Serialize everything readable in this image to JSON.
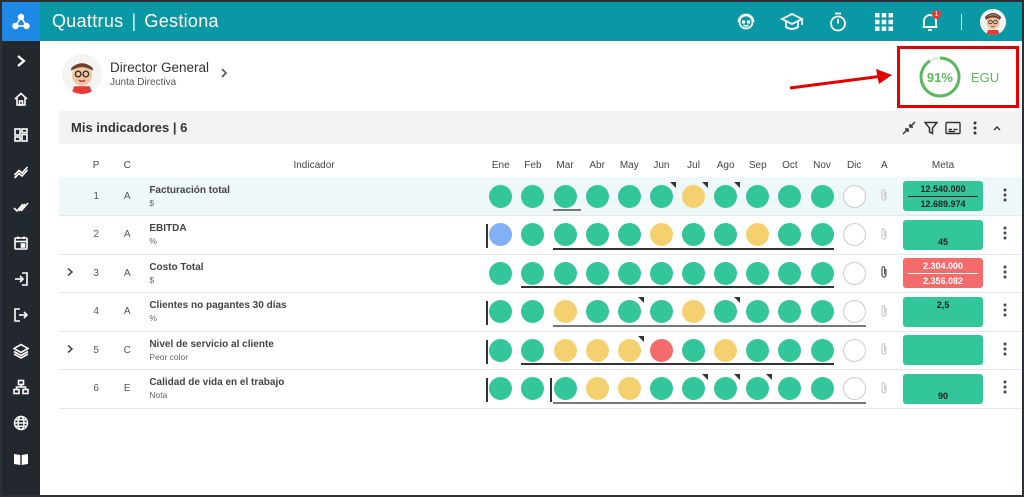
{
  "app": {
    "brand_left": "Quattrus",
    "brand_sep": "|",
    "brand_right": "Gestiona",
    "notif_count": "1"
  },
  "user": {
    "title": "Director General",
    "subtitle": "Junta Directiva"
  },
  "egu": {
    "percent": "91%",
    "label": "EGU",
    "value": 0.91,
    "color": "#5cb85c"
  },
  "panel": {
    "title": "Mis indicadores | 6"
  },
  "columns": {
    "p": "P",
    "c": "C",
    "indicador": "Indicador",
    "months": [
      "Ene",
      "Feb",
      "Mar",
      "Abr",
      "May",
      "Jun",
      "Jul",
      "Ago",
      "Sep",
      "Oct",
      "Nov",
      "Dic"
    ],
    "a": "A",
    "meta": "Meta"
  },
  "rows": [
    {
      "p": "1",
      "c": "A",
      "name": "Facturación total",
      "unit": "$",
      "meta_top": "12.540.000",
      "meta_bottom": "12.689.974",
      "meta_color": "green",
      "dots": [
        "g",
        "g",
        "g",
        "g",
        "g",
        "g",
        "y",
        "g",
        "g",
        "g",
        "g",
        "e"
      ],
      "corners": [
        5,
        6,
        7
      ]
    },
    {
      "p": "2",
      "c": "A",
      "name": "EBITDA",
      "unit": "%",
      "meta_top": "",
      "meta_bottom": "45",
      "meta_color": "green",
      "dots": [
        "b",
        "g",
        "g",
        "g",
        "g",
        "y",
        "g",
        "g",
        "y",
        "g",
        "g",
        "e"
      ],
      "corners": []
    },
    {
      "p": "3",
      "c": "A",
      "name": "Costo Total",
      "unit": "$",
      "meta_top": "2.304.000",
      "meta_bottom": "2.356.082",
      "meta_color": "red",
      "dots": [
        "g",
        "g",
        "g",
        "g",
        "g",
        "g",
        "g",
        "g",
        "g",
        "g",
        "g",
        "e"
      ],
      "corners": []
    },
    {
      "p": "4",
      "c": "A",
      "name": "Clientes no pagantes 30 días",
      "unit": "%",
      "meta_top": "2,5",
      "meta_bottom": "",
      "meta_color": "green",
      "dots": [
        "g",
        "g",
        "y",
        "g",
        "g",
        "g",
        "y",
        "g",
        "g",
        "g",
        "g",
        "e"
      ],
      "corners": [
        4,
        7
      ]
    },
    {
      "p": "5",
      "c": "C",
      "name": "Nivel de servicio al cliente",
      "unit": "Peor color",
      "meta_top": "",
      "meta_bottom": "",
      "meta_color": "green",
      "dots": [
        "g",
        "g",
        "y",
        "y",
        "y",
        "r",
        "g",
        "y",
        "g",
        "g",
        "g",
        "e"
      ],
      "corners": [
        4
      ]
    },
    {
      "p": "6",
      "c": "E",
      "name": "Calidad de vida en el trabajo",
      "unit": "Nota",
      "meta_top": "",
      "meta_bottom": "90",
      "meta_color": "green",
      "dots": [
        "g",
        "g",
        "g",
        "y",
        "y",
        "g",
        "g",
        "g",
        "g",
        "g",
        "g",
        "e"
      ],
      "corners": [
        6,
        7,
        8
      ]
    }
  ],
  "colors": {
    "topbar": "#0a98a5",
    "sidebar": "#23272e",
    "green": "#33c69a",
    "yellow": "#f5d06f",
    "red": "#f36b6b",
    "blue": "#82b0f7",
    "highlight": "#e50000"
  },
  "icons": {
    "sidebar": [
      "chevron-right-icon",
      "home-icon",
      "dashboard-icon",
      "trend-icon",
      "double-check-icon",
      "calendar-icon",
      "login-icon",
      "logout-icon",
      "layers-icon",
      "hierarchy-icon",
      "globe-icon",
      "book-icon"
    ],
    "topbar": [
      "support-agent-icon",
      "graduation-cap-icon",
      "timer-icon",
      "apps-grid-icon",
      "bell-icon"
    ],
    "panel_tools": [
      "collapse-icon",
      "filter-icon",
      "subtitles-icon",
      "more-vert-icon",
      "chevron-up-icon"
    ]
  }
}
